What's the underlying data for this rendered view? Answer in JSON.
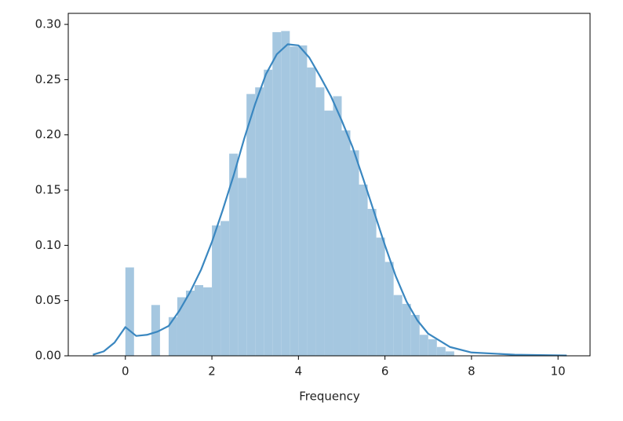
{
  "chart_data": {
    "type": "histogram",
    "xlabel": "Frequency",
    "bins": [
      0,
      0.2,
      0.4,
      0.6,
      0.8,
      1.0,
      1.2,
      1.4,
      1.6,
      1.8,
      2.0,
      2.2,
      2.4,
      2.6,
      2.8,
      3.0,
      3.2,
      3.4,
      3.6,
      3.8,
      4.0,
      4.2,
      4.4,
      4.6,
      4.8,
      5.0,
      5.2,
      5.4,
      5.6,
      5.8,
      6.0,
      6.2,
      6.4,
      6.6,
      6.8,
      7.0,
      7.2,
      7.4,
      7.6
    ],
    "values": [
      0.08,
      0,
      0,
      0.046,
      0,
      0.035,
      0.053,
      0.059,
      0.064,
      0.062,
      0.118,
      0.122,
      0.183,
      0.161,
      0.237,
      0.243,
      0.259,
      0.293,
      0.294,
      0.28,
      0.281,
      0.261,
      0.243,
      0.222,
      0.235,
      0.204,
      0.186,
      0.155,
      0.133,
      0.107,
      0.085,
      0.055,
      0.047,
      0.037,
      0.019,
      0.015,
      0.008,
      0.004
    ],
    "color": "#a5c7e0",
    "lines": [
      {
        "color": "#3a87c0",
        "x": [
          -0.75,
          -0.5,
          -0.25,
          0,
          0.25,
          0.5,
          0.75,
          1,
          1.25,
          1.5,
          1.75,
          2,
          2.25,
          2.5,
          2.75,
          3,
          3.25,
          3.5,
          3.75,
          4,
          4.25,
          4.5,
          4.75,
          5,
          5.25,
          5.5,
          5.75,
          6,
          6.25,
          6.5,
          6.75,
          7,
          7.5,
          8,
          9,
          10.2
        ],
        "values": [
          0.001,
          0.004,
          0.012,
          0.026,
          0.018,
          0.019,
          0.022,
          0.027,
          0.041,
          0.058,
          0.078,
          0.103,
          0.132,
          0.163,
          0.197,
          0.228,
          0.255,
          0.273,
          0.282,
          0.281,
          0.27,
          0.253,
          0.235,
          0.213,
          0.189,
          0.16,
          0.13,
          0.1,
          0.072,
          0.049,
          0.032,
          0.02,
          0.008,
          0.003,
          0.001,
          0.0003
        ]
      }
    ],
    "xlim": [
      -1.32,
      10.74
    ],
    "xticks": [
      0,
      2,
      4,
      6,
      8,
      10
    ],
    "ylim": [
      0,
      0.31
    ],
    "yticks": [
      {
        "value": 0,
        "label": "0.00"
      },
      {
        "value": 0.05,
        "label": "0.05"
      },
      {
        "value": 0.1,
        "label": "0.10"
      },
      {
        "value": 0.15,
        "label": "0.15"
      },
      {
        "value": 0.2,
        "label": "0.20"
      },
      {
        "value": 0.25,
        "label": "0.25"
      },
      {
        "value": 0.3,
        "label": "0.30"
      }
    ]
  }
}
